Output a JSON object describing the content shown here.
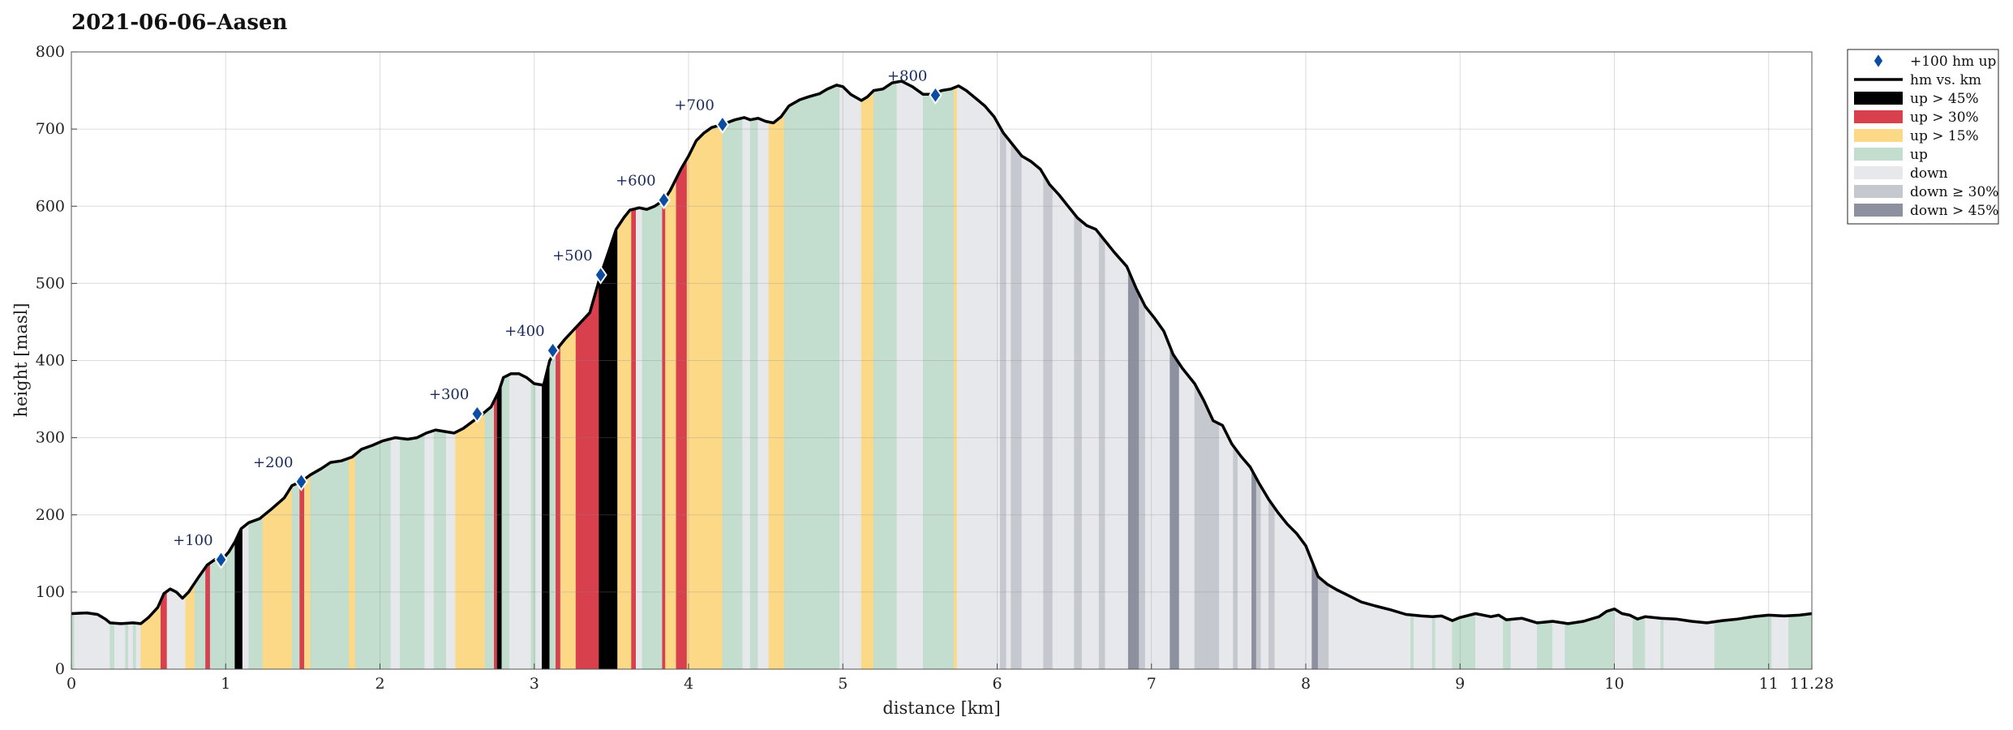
{
  "chart_data": {
    "type": "area",
    "title": "2021-06-06–Aasen",
    "xlabel": "distance [km]",
    "ylabel": "height [masl]",
    "xlim": [
      0,
      11.28
    ],
    "ylim": [
      0,
      800
    ],
    "x_ticks": [
      0,
      1,
      2,
      3,
      4,
      5,
      6,
      7,
      8,
      9,
      10,
      11,
      11.28
    ],
    "x_tick_labels": [
      "0",
      "1",
      "2",
      "3",
      "4",
      "5",
      "6",
      "7",
      "8",
      "9",
      "10",
      "11",
      "11.28"
    ],
    "y_ticks": [
      0,
      100,
      200,
      300,
      400,
      500,
      600,
      700,
      800
    ],
    "y_tick_labels": [
      "0",
      "100",
      "200",
      "300",
      "400",
      "500",
      "600",
      "700",
      "800"
    ],
    "grid": true,
    "legend_position": "outside-top-right",
    "legend": [
      {
        "key": "milestone",
        "label": "+100 hm up"
      },
      {
        "key": "line",
        "label": "hm vs. km"
      },
      {
        "key": "up45",
        "label": "up > 45%"
      },
      {
        "key": "up30",
        "label": "up > 30%"
      },
      {
        "key": "up15",
        "label": "up > 15%"
      },
      {
        "key": "up",
        "label": "up"
      },
      {
        "key": "down",
        "label": "down"
      },
      {
        "key": "down30",
        "label": "down ≥ 30%"
      },
      {
        "key": "down45",
        "label": "down > 45%"
      }
    ],
    "colors": {
      "up45": "#000000",
      "up30": "#d8404e",
      "up15": "#fcd987",
      "up": "#c3ddce",
      "down": "#e7e8eb",
      "down30": "#c6c8d0",
      "down45": "#8d919f",
      "line": "#000000",
      "milestone": "#0b4da2"
    },
    "profile": [
      [
        0.0,
        72
      ],
      [
        0.1,
        73
      ],
      [
        0.17,
        71
      ],
      [
        0.22,
        65
      ],
      [
        0.25,
        60
      ],
      [
        0.32,
        59
      ],
      [
        0.4,
        60
      ],
      [
        0.45,
        59
      ],
      [
        0.5,
        67
      ],
      [
        0.56,
        80
      ],
      [
        0.6,
        98
      ],
      [
        0.64,
        104
      ],
      [
        0.68,
        100
      ],
      [
        0.72,
        92
      ],
      [
        0.76,
        100
      ],
      [
        0.82,
        118
      ],
      [
        0.88,
        135
      ],
      [
        0.93,
        142
      ],
      [
        0.97,
        140
      ],
      [
        1.02,
        152
      ],
      [
        1.06,
        165
      ],
      [
        1.1,
        182
      ],
      [
        1.15,
        190
      ],
      [
        1.22,
        195
      ],
      [
        1.3,
        208
      ],
      [
        1.38,
        222
      ],
      [
        1.43,
        238
      ],
      [
        1.49,
        243
      ],
      [
        1.55,
        252
      ],
      [
        1.62,
        260
      ],
      [
        1.68,
        268
      ],
      [
        1.75,
        270
      ],
      [
        1.82,
        275
      ],
      [
        1.88,
        285
      ],
      [
        1.95,
        290
      ],
      [
        2.02,
        296
      ],
      [
        2.1,
        300
      ],
      [
        2.18,
        298
      ],
      [
        2.24,
        300
      ],
      [
        2.3,
        306
      ],
      [
        2.36,
        310
      ],
      [
        2.42,
        308
      ],
      [
        2.48,
        306
      ],
      [
        2.54,
        312
      ],
      [
        2.62,
        324
      ],
      [
        2.66,
        330
      ],
      [
        2.72,
        340
      ],
      [
        2.77,
        360
      ],
      [
        2.8,
        378
      ],
      [
        2.85,
        383
      ],
      [
        2.9,
        383
      ],
      [
        2.95,
        378
      ],
      [
        3.0,
        370
      ],
      [
        3.06,
        368
      ],
      [
        3.1,
        400
      ],
      [
        3.14,
        413
      ],
      [
        3.2,
        428
      ],
      [
        3.28,
        445
      ],
      [
        3.36,
        462
      ],
      [
        3.43,
        511
      ],
      [
        3.48,
        540
      ],
      [
        3.53,
        570
      ],
      [
        3.58,
        585
      ],
      [
        3.62,
        595
      ],
      [
        3.68,
        598
      ],
      [
        3.73,
        596
      ],
      [
        3.78,
        600
      ],
      [
        3.84,
        608
      ],
      [
        3.88,
        620
      ],
      [
        3.95,
        648
      ],
      [
        4.0,
        665
      ],
      [
        4.05,
        685
      ],
      [
        4.1,
        695
      ],
      [
        4.15,
        702
      ],
      [
        4.22,
        706
      ],
      [
        4.3,
        712
      ],
      [
        4.36,
        715
      ],
      [
        4.4,
        712
      ],
      [
        4.45,
        714
      ],
      [
        4.5,
        710
      ],
      [
        4.55,
        708
      ],
      [
        4.6,
        716
      ],
      [
        4.65,
        730
      ],
      [
        4.72,
        738
      ],
      [
        4.78,
        742
      ],
      [
        4.85,
        746
      ],
      [
        4.9,
        752
      ],
      [
        4.96,
        757
      ],
      [
        5.0,
        755
      ],
      [
        5.05,
        745
      ],
      [
        5.12,
        737
      ],
      [
        5.16,
        742
      ],
      [
        5.2,
        750
      ],
      [
        5.26,
        752
      ],
      [
        5.32,
        760
      ],
      [
        5.38,
        762
      ],
      [
        5.45,
        755
      ],
      [
        5.52,
        745
      ],
      [
        5.58,
        745
      ],
      [
        5.64,
        750
      ],
      [
        5.7,
        752
      ],
      [
        5.75,
        756
      ],
      [
        5.8,
        750
      ],
      [
        5.86,
        740
      ],
      [
        5.92,
        730
      ],
      [
        5.98,
        716
      ],
      [
        6.04,
        695
      ],
      [
        6.1,
        680
      ],
      [
        6.16,
        665
      ],
      [
        6.22,
        658
      ],
      [
        6.28,
        648
      ],
      [
        6.34,
        628
      ],
      [
        6.4,
        615
      ],
      [
        6.46,
        600
      ],
      [
        6.52,
        585
      ],
      [
        6.58,
        575
      ],
      [
        6.64,
        570
      ],
      [
        6.7,
        555
      ],
      [
        6.76,
        540
      ],
      [
        6.84,
        522
      ],
      [
        6.9,
        494
      ],
      [
        6.96,
        470
      ],
      [
        7.02,
        455
      ],
      [
        7.08,
        438
      ],
      [
        7.14,
        408
      ],
      [
        7.2,
        390
      ],
      [
        7.28,
        370
      ],
      [
        7.34,
        348
      ],
      [
        7.4,
        322
      ],
      [
        7.46,
        316
      ],
      [
        7.52,
        292
      ],
      [
        7.58,
        276
      ],
      [
        7.64,
        262
      ],
      [
        7.7,
        240
      ],
      [
        7.76,
        220
      ],
      [
        7.82,
        203
      ],
      [
        7.88,
        188
      ],
      [
        7.94,
        176
      ],
      [
        8.0,
        160
      ],
      [
        8.04,
        140
      ],
      [
        8.08,
        120
      ],
      [
        8.14,
        110
      ],
      [
        8.2,
        103
      ],
      [
        8.28,
        95
      ],
      [
        8.36,
        87
      ],
      [
        8.45,
        82
      ],
      [
        8.55,
        77
      ],
      [
        8.65,
        71
      ],
      [
        8.75,
        69
      ],
      [
        8.82,
        68
      ],
      [
        8.88,
        69
      ],
      [
        8.95,
        63
      ],
      [
        9.0,
        67
      ],
      [
        9.1,
        72
      ],
      [
        9.2,
        68
      ],
      [
        9.25,
        70
      ],
      [
        9.3,
        64
      ],
      [
        9.4,
        66
      ],
      [
        9.5,
        60
      ],
      [
        9.6,
        62
      ],
      [
        9.7,
        59
      ],
      [
        9.8,
        62
      ],
      [
        9.9,
        68
      ],
      [
        9.95,
        75
      ],
      [
        10.0,
        78
      ],
      [
        10.05,
        72
      ],
      [
        10.1,
        70
      ],
      [
        10.15,
        65
      ],
      [
        10.2,
        68
      ],
      [
        10.3,
        66
      ],
      [
        10.4,
        65
      ],
      [
        10.5,
        62
      ],
      [
        10.6,
        60
      ],
      [
        10.7,
        63
      ],
      [
        10.8,
        65
      ],
      [
        10.9,
        68
      ],
      [
        11.0,
        70
      ],
      [
        11.1,
        69
      ],
      [
        11.2,
        70
      ],
      [
        11.28,
        72
      ]
    ],
    "milestones": [
      {
        "label": "+100",
        "km": 0.97,
        "masl": 142
      },
      {
        "label": "+200",
        "km": 1.49,
        "masl": 243
      },
      {
        "label": "+300",
        "km": 2.63,
        "masl": 331
      },
      {
        "label": "+400",
        "km": 3.12,
        "masl": 413
      },
      {
        "label": "+500",
        "km": 3.43,
        "masl": 511
      },
      {
        "label": "+600",
        "km": 3.84,
        "masl": 608
      },
      {
        "label": "+700",
        "km": 4.22,
        "masl": 706
      },
      {
        "label": "+800",
        "km": 5.6,
        "masl": 744
      }
    ],
    "segments": [
      [
        0.0,
        0.02,
        "up"
      ],
      [
        0.02,
        0.25,
        "down"
      ],
      [
        0.25,
        0.28,
        "up"
      ],
      [
        0.28,
        0.35,
        "down"
      ],
      [
        0.35,
        0.37,
        "up"
      ],
      [
        0.37,
        0.4,
        "down"
      ],
      [
        0.4,
        0.42,
        "up"
      ],
      [
        0.42,
        0.45,
        "down"
      ],
      [
        0.45,
        0.58,
        "up15"
      ],
      [
        0.58,
        0.62,
        "up30"
      ],
      [
        0.62,
        0.74,
        "down"
      ],
      [
        0.74,
        0.8,
        "up15"
      ],
      [
        0.8,
        0.87,
        "up"
      ],
      [
        0.87,
        0.9,
        "up30"
      ],
      [
        0.9,
        1.06,
        "up"
      ],
      [
        1.06,
        1.11,
        "up45"
      ],
      [
        1.11,
        1.15,
        "down"
      ],
      [
        1.15,
        1.24,
        "up"
      ],
      [
        1.24,
        1.43,
        "up15"
      ],
      [
        1.43,
        1.48,
        "up"
      ],
      [
        1.48,
        1.51,
        "up30"
      ],
      [
        1.51,
        1.55,
        "up15"
      ],
      [
        1.55,
        1.8,
        "up"
      ],
      [
        1.8,
        1.84,
        "up15"
      ],
      [
        1.84,
        2.07,
        "up"
      ],
      [
        2.07,
        2.13,
        "down"
      ],
      [
        2.13,
        2.29,
        "up"
      ],
      [
        2.29,
        2.35,
        "down"
      ],
      [
        2.35,
        2.43,
        "up"
      ],
      [
        2.43,
        2.49,
        "down"
      ],
      [
        2.49,
        2.68,
        "up15"
      ],
      [
        2.68,
        2.74,
        "up"
      ],
      [
        2.74,
        2.76,
        "up30"
      ],
      [
        2.76,
        2.79,
        "up45"
      ],
      [
        2.79,
        2.84,
        "up"
      ],
      [
        2.84,
        2.98,
        "down"
      ],
      [
        2.98,
        3.01,
        "up"
      ],
      [
        3.01,
        3.05,
        "down"
      ],
      [
        3.05,
        3.1,
        "up45"
      ],
      [
        3.1,
        3.14,
        "up"
      ],
      [
        3.14,
        3.17,
        "up30"
      ],
      [
        3.17,
        3.27,
        "up15"
      ],
      [
        3.27,
        3.42,
        "up30"
      ],
      [
        3.42,
        3.54,
        "up45"
      ],
      [
        3.54,
        3.63,
        "up15"
      ],
      [
        3.63,
        3.66,
        "up30"
      ],
      [
        3.66,
        3.7,
        "down"
      ],
      [
        3.7,
        3.83,
        "up"
      ],
      [
        3.83,
        3.85,
        "up30"
      ],
      [
        3.85,
        3.92,
        "up15"
      ],
      [
        3.92,
        3.99,
        "up30"
      ],
      [
        3.99,
        4.05,
        "up15"
      ],
      [
        4.05,
        4.22,
        "up15"
      ],
      [
        4.22,
        4.35,
        "up"
      ],
      [
        4.35,
        4.4,
        "down"
      ],
      [
        4.4,
        4.45,
        "up"
      ],
      [
        4.45,
        4.52,
        "down"
      ],
      [
        4.52,
        4.62,
        "up15"
      ],
      [
        4.62,
        4.98,
        "up"
      ],
      [
        4.98,
        5.12,
        "down"
      ],
      [
        5.12,
        5.2,
        "up15"
      ],
      [
        5.2,
        5.35,
        "up"
      ],
      [
        5.35,
        5.52,
        "down"
      ],
      [
        5.52,
        5.72,
        "up"
      ],
      [
        5.72,
        5.74,
        "up15"
      ],
      [
        5.74,
        6.02,
        "down"
      ],
      [
        6.02,
        6.06,
        "down30"
      ],
      [
        6.06,
        6.09,
        "down"
      ],
      [
        6.09,
        6.16,
        "down30"
      ],
      [
        6.16,
        6.3,
        "down"
      ],
      [
        6.3,
        6.36,
        "down30"
      ],
      [
        6.36,
        6.5,
        "down"
      ],
      [
        6.5,
        6.55,
        "down30"
      ],
      [
        6.55,
        6.66,
        "down"
      ],
      [
        6.66,
        6.7,
        "down30"
      ],
      [
        6.7,
        6.85,
        "down"
      ],
      [
        6.85,
        6.92,
        "down45"
      ],
      [
        6.92,
        6.96,
        "down30"
      ],
      [
        6.96,
        7.12,
        "down"
      ],
      [
        7.12,
        7.18,
        "down45"
      ],
      [
        7.18,
        7.28,
        "down"
      ],
      [
        7.28,
        7.44,
        "down30"
      ],
      [
        7.44,
        7.53,
        "down"
      ],
      [
        7.53,
        7.56,
        "down30"
      ],
      [
        7.56,
        7.65,
        "down"
      ],
      [
        7.65,
        7.68,
        "down45"
      ],
      [
        7.68,
        7.71,
        "down30"
      ],
      [
        7.71,
        7.76,
        "down"
      ],
      [
        7.76,
        7.8,
        "down30"
      ],
      [
        7.8,
        8.04,
        "down"
      ],
      [
        8.04,
        8.08,
        "down45"
      ],
      [
        8.08,
        8.15,
        "down30"
      ],
      [
        8.15,
        8.68,
        "down"
      ],
      [
        8.68,
        8.7,
        "up"
      ],
      [
        8.7,
        8.82,
        "down"
      ],
      [
        8.82,
        8.84,
        "up"
      ],
      [
        8.84,
        8.95,
        "down"
      ],
      [
        8.95,
        9.1,
        "up"
      ],
      [
        9.1,
        9.28,
        "down"
      ],
      [
        9.28,
        9.33,
        "up"
      ],
      [
        9.33,
        9.5,
        "down"
      ],
      [
        9.5,
        9.6,
        "up"
      ],
      [
        9.6,
        9.68,
        "down"
      ],
      [
        9.68,
        10.0,
        "up"
      ],
      [
        10.0,
        10.12,
        "down"
      ],
      [
        10.12,
        10.2,
        "up"
      ],
      [
        10.2,
        10.3,
        "down"
      ],
      [
        10.3,
        10.32,
        "up"
      ],
      [
        10.32,
        10.65,
        "down"
      ],
      [
        10.65,
        11.02,
        "up"
      ],
      [
        11.02,
        11.13,
        "down"
      ],
      [
        11.13,
        11.28,
        "up"
      ]
    ]
  }
}
